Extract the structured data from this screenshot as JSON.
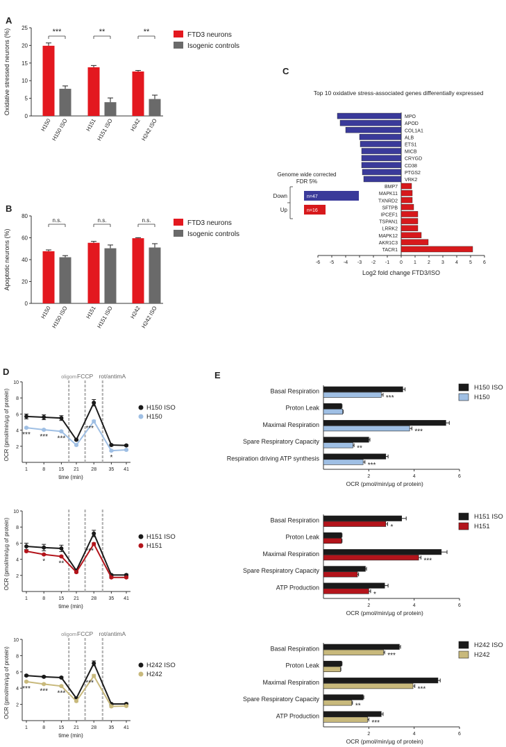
{
  "colors": {
    "ftd_red": "#e3181f",
    "iso_grey": "#6a6a6a",
    "iso_black": "#1a1a1a",
    "blue_bar": "#3a3a9a",
    "red_bar": "#d7191c",
    "h150_blue": "#9fbfe4",
    "h151_red": "#b3141b",
    "h242_tan": "#c8b97c",
    "axis": "#333333",
    "dashed": "#b3b3b3"
  },
  "chart_data": [
    {
      "id": "A",
      "type": "bar",
      "panel_label": "A",
      "ylabel": "Oxidative stressed neurons (%)",
      "ylim": [
        0,
        25
      ],
      "yticks": [
        0,
        5,
        10,
        15,
        20,
        25
      ],
      "categories": [
        "H150",
        "H150 ISO",
        "H151",
        "H151 ISO",
        "H242",
        "H242 ISO"
      ],
      "values": [
        19.9,
        7.7,
        13.8,
        3.9,
        12.6,
        4.8
      ],
      "errors": [
        0.8,
        0.8,
        0.5,
        1.2,
        0.3,
        1.1
      ],
      "colors": [
        "#e3181f",
        "#6a6a6a",
        "#e3181f",
        "#6a6a6a",
        "#e3181f",
        "#6a6a6a"
      ],
      "significance": [
        "***",
        "**",
        "**"
      ],
      "legend": [
        "FTD3 neurons",
        "Isogenic controls"
      ]
    },
    {
      "id": "B",
      "type": "bar",
      "panel_label": "B",
      "ylabel": "Apoptotic neurons (%)",
      "ylim": [
        0,
        80
      ],
      "yticks": [
        0,
        20,
        40,
        60,
        80
      ],
      "categories": [
        "H150",
        "H150 ISO",
        "H151",
        "H151 ISO",
        "H242",
        "H242 ISO"
      ],
      "values": [
        47.7,
        42.2,
        55.4,
        50.4,
        59.6,
        51.1
      ],
      "errors": [
        1.2,
        1.5,
        1.3,
        3.0,
        0.5,
        3.5
      ],
      "colors": [
        "#e3181f",
        "#6a6a6a",
        "#e3181f",
        "#6a6a6a",
        "#e3181f",
        "#6a6a6a"
      ],
      "significance": [
        "n.s.",
        "n.s.",
        "n.s."
      ],
      "legend": [
        "FTD3 neurons",
        "Isogenic controls"
      ]
    },
    {
      "id": "C",
      "type": "bar",
      "panel_label": "C",
      "orientation": "horizontal",
      "title": "Top 10 oxidative stress-associated genes differentially expressed",
      "xlabel": "Log2 fold change FTD3/ISO",
      "xlim": [
        -6,
        6
      ],
      "xticks": [
        -6,
        -5,
        -4,
        -3,
        -2,
        -1,
        0,
        1,
        2,
        3,
        4,
        5,
        6
      ],
      "categories": [
        "MPO",
        "APOD",
        "COL1A1",
        "ALB",
        "ETS1",
        "MICB",
        "CRYGD",
        "CD38",
        "PTGS2",
        "VRK2",
        "BMP7",
        "MAPK11",
        "TXNRD2",
        "SFTPB",
        "IPCEF1",
        "TSPAN1",
        "LRRK2",
        "MAPK12",
        "AKR1C3",
        "TACR1"
      ],
      "values": [
        -4.6,
        -4.4,
        -4.0,
        -3.0,
        -2.95,
        -2.85,
        -2.85,
        -2.85,
        -2.8,
        -2.7,
        0.75,
        0.8,
        0.8,
        0.9,
        1.2,
        1.2,
        1.2,
        1.45,
        1.95,
        5.15
      ],
      "annotation": {
        "line1": "Genome wide corrected",
        "line2": "FDR 5%",
        "down_label": "Down",
        "down_value": -3.05,
        "down_n": "n=47",
        "up_label": "Up",
        "up_value": -5.45,
        "up_n": "n=16"
      }
    },
    {
      "id": "D1",
      "type": "line",
      "panel_label": "D",
      "xlabel": "time (min)",
      "ylabel": "OCR (pmol/min/µg of protein)",
      "x": [
        1,
        8,
        15,
        21,
        28,
        35,
        41
      ],
      "ylim": [
        0,
        10
      ],
      "yticks": [
        2,
        4,
        6,
        8,
        10
      ],
      "injections": [
        "oligom",
        "FCCP",
        "rot/antimA"
      ],
      "series": [
        {
          "name": "H150 ISO",
          "color": "#1a1a1a",
          "values": [
            5.7,
            5.6,
            5.5,
            2.8,
            7.4,
            2.15,
            2.1
          ],
          "errors": [
            0.3,
            0.3,
            0.3,
            0.1,
            0.4,
            0.1,
            0.1
          ]
        },
        {
          "name": "H150",
          "color": "#9fbfe4",
          "values": [
            4.3,
            4.05,
            3.85,
            2.15,
            5.1,
            1.45,
            1.55
          ],
          "errors": [
            0.1,
            0.1,
            0.1,
            0.1,
            0.15,
            0.1,
            0.1
          ]
        }
      ],
      "stars": [
        "***",
        "***",
        "***",
        "",
        "***",
        "*",
        ""
      ]
    },
    {
      "id": "D2",
      "type": "line",
      "xlabel": "time (min)",
      "ylabel": "OCR (pmol/min/µg of protein)",
      "x": [
        1,
        8,
        15,
        21,
        28,
        35,
        41
      ],
      "ylim": [
        0,
        10
      ],
      "yticks": [
        2,
        4,
        6,
        8,
        10
      ],
      "injections": [
        "oligom",
        "FCCP",
        "rot/antimA"
      ],
      "series": [
        {
          "name": "H151 ISO",
          "color": "#1a1a1a",
          "values": [
            5.6,
            5.45,
            5.35,
            2.6,
            7.2,
            2.05,
            2.05
          ],
          "errors": [
            0.4,
            0.4,
            0.4,
            0.2,
            0.4,
            0.1,
            0.1
          ]
        },
        {
          "name": "H151",
          "color": "#b3141b",
          "values": [
            5.0,
            4.6,
            4.35,
            2.4,
            5.9,
            1.75,
            1.75
          ],
          "errors": [
            0.1,
            0.1,
            0.1,
            0.1,
            0.15,
            0.1,
            0.1
          ]
        }
      ],
      "stars": [
        "",
        "*",
        "**",
        "",
        "***",
        "",
        ""
      ]
    },
    {
      "id": "D3",
      "type": "line",
      "xlabel": "time (min)",
      "ylabel": "OCR (pmol/min/µg of protein)",
      "x": [
        1,
        8,
        15,
        21,
        28,
        35,
        41
      ],
      "ylim": [
        0,
        10
      ],
      "yticks": [
        2,
        4,
        6,
        8,
        10
      ],
      "injections": [
        "oligom",
        "FCCP",
        "rot/antimA"
      ],
      "series": [
        {
          "name": "H242 ISO",
          "color": "#1a1a1a",
          "values": [
            5.55,
            5.4,
            5.3,
            2.75,
            7.05,
            2.05,
            2.05
          ],
          "errors": [
            0.1,
            0.1,
            0.1,
            0.1,
            0.3,
            0.1,
            0.1
          ]
        },
        {
          "name": "H242",
          "color": "#c8b97c",
          "values": [
            4.8,
            4.5,
            4.25,
            2.4,
            5.5,
            1.75,
            1.8
          ],
          "errors": [
            0.1,
            0.1,
            0.1,
            0.1,
            0.2,
            0.1,
            0.1
          ]
        }
      ],
      "stars": [
        "***",
        "***",
        "***",
        "",
        "***",
        "",
        ""
      ]
    },
    {
      "id": "E1",
      "type": "bar",
      "panel_label": "E",
      "orientation": "horizontal",
      "xlabel": "OCR (pmol/min/µg of protein)",
      "xlim": [
        0,
        6
      ],
      "xticks": [
        2,
        4,
        6
      ],
      "categories": [
        "Basal Respiration",
        "Proton Leak",
        "Maximal Respiration",
        "Spare Respiratory Capacity",
        "Respiration driving ATP synthesis"
      ],
      "series": [
        {
          "name": "H150 ISO",
          "color": "#1a1a1a",
          "values": [
            3.5,
            0.8,
            5.4,
            2.0,
            2.75
          ],
          "errors": [
            0.1,
            0.02,
            0.15,
            0.05,
            0.1
          ]
        },
        {
          "name": "H150",
          "color": "#9fbfe4",
          "values": [
            2.55,
            0.85,
            3.8,
            1.3,
            1.75
          ],
          "errors": [
            0.08,
            0.02,
            0.1,
            0.05,
            0.08
          ]
        }
      ],
      "stars": [
        "***",
        "",
        "***",
        "**",
        "***"
      ]
    },
    {
      "id": "E2",
      "type": "bar",
      "orientation": "horizontal",
      "xlabel": "OCR (pmol/min/µg of protein)",
      "xlim": [
        0,
        6
      ],
      "xticks": [
        2,
        4,
        6
      ],
      "categories": [
        "Basal Respiration",
        "Proton Leak",
        "Maximal Respiration",
        "Spare Respiratory Capacity",
        "ATP Production"
      ],
      "series": [
        {
          "name": "H151 ISO",
          "color": "#1a1a1a",
          "values": [
            3.45,
            0.8,
            5.2,
            1.85,
            2.7
          ],
          "errors": [
            0.2,
            0.02,
            0.25,
            0.05,
            0.15
          ]
        },
        {
          "name": "H151",
          "color": "#b3141b",
          "values": [
            2.75,
            0.8,
            4.2,
            1.5,
            2.0
          ],
          "errors": [
            0.08,
            0.02,
            0.1,
            0.05,
            0.08
          ]
        }
      ],
      "stars": [
        "*",
        "",
        "***",
        "",
        "*"
      ]
    },
    {
      "id": "E3",
      "type": "bar",
      "orientation": "horizontal",
      "xlabel": "OCR (pmol/min/µg of protein)",
      "xlim": [
        0,
        6
      ],
      "xticks": [
        2,
        4,
        6
      ],
      "categories": [
        "Basal Respiration",
        "Proton Leak",
        "Maximal Respiration",
        "Spare Respiratory Capacity",
        "ATP Production"
      ],
      "series": [
        {
          "name": "H242 ISO",
          "color": "#1a1a1a",
          "values": [
            3.35,
            0.8,
            5.05,
            1.75,
            2.55
          ],
          "errors": [
            0.05,
            0.02,
            0.1,
            0.03,
            0.08
          ]
        },
        {
          "name": "H242",
          "color": "#c8b97c",
          "values": [
            2.65,
            0.75,
            3.95,
            1.25,
            1.95
          ],
          "errors": [
            0.05,
            0.02,
            0.08,
            0.03,
            0.05
          ]
        }
      ],
      "stars": [
        "***",
        "",
        "***",
        "**",
        "***"
      ]
    }
  ]
}
